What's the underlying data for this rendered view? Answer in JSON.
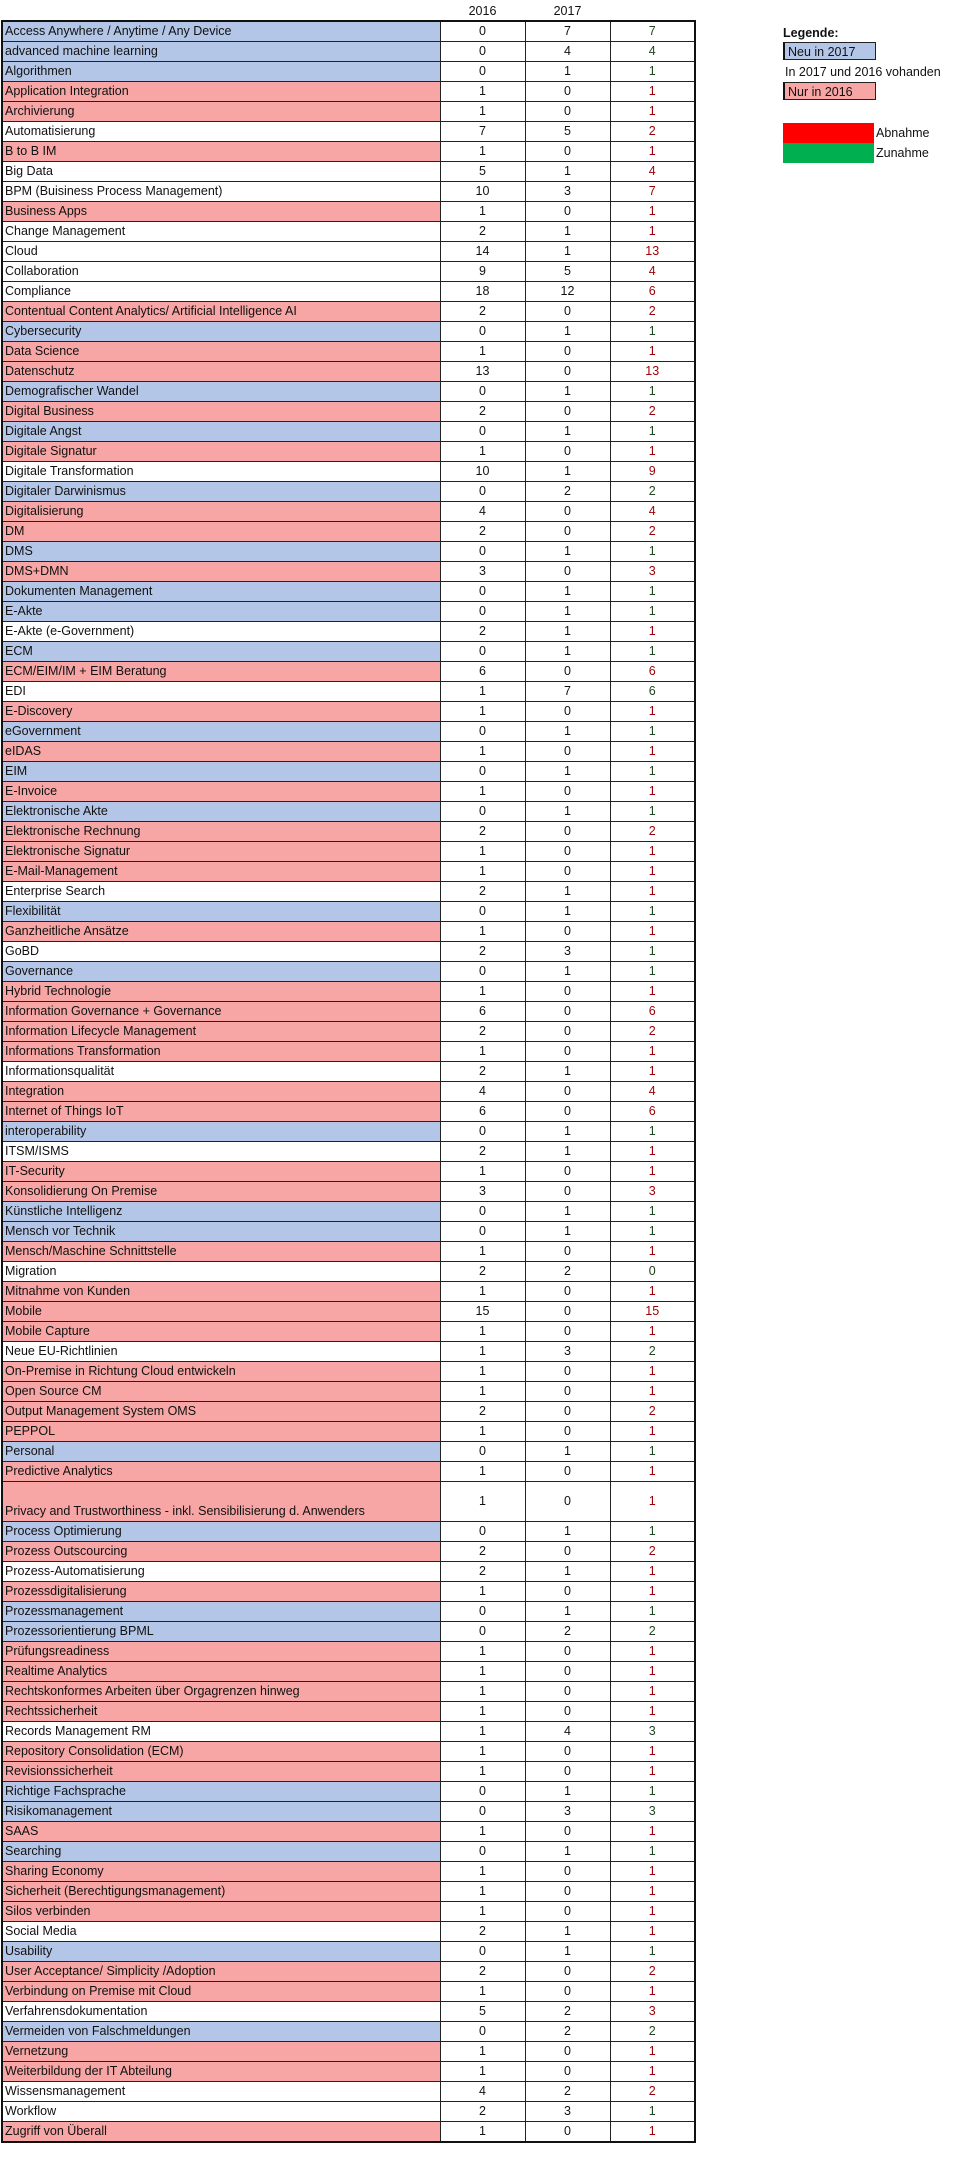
{
  "header": {
    "col_2016": "2016",
    "col_2017": "2017"
  },
  "legend": {
    "title": "Legende:",
    "neu": "Neu in 2017",
    "beide": "In 2017 und 2016 vohanden",
    "nur": "Nur in 2016",
    "abnahme": "Abnahme",
    "zunahme": "Zunahme",
    "colors": {
      "neu": "#b4c6e7",
      "nur": "#f8a5a5",
      "abnahme": "#ff0000",
      "zunahme": "#00b050",
      "unveraendert": "#92d050"
    }
  },
  "rows": [
    {
      "topic": "Access Anywhere / Anytime / Any Device",
      "y2016": "0",
      "y2017": "7",
      "diff": "7",
      "cat": "neu",
      "trend": "zu"
    },
    {
      "topic": "advanced machine learning",
      "y2016": "0",
      "y2017": "4",
      "diff": "4",
      "cat": "neu",
      "trend": "zu"
    },
    {
      "topic": "Algorithmen",
      "y2016": "0",
      "y2017": "1",
      "diff": "1",
      "cat": "neu",
      "trend": "zu"
    },
    {
      "topic": "Application Integration",
      "y2016": "1",
      "y2017": "0",
      "diff": "1",
      "cat": "nur",
      "trend": "ab"
    },
    {
      "topic": "Archivierung",
      "y2016": "1",
      "y2017": "0",
      "diff": "1",
      "cat": "nur",
      "trend": "ab"
    },
    {
      "topic": "Automatisierung",
      "y2016": "7",
      "y2017": "5",
      "diff": "2",
      "cat": "beide",
      "trend": "ab"
    },
    {
      "topic": "B to B IM",
      "y2016": "1",
      "y2017": "0",
      "diff": "1",
      "cat": "nur",
      "trend": "ab"
    },
    {
      "topic": "Big Data",
      "y2016": "5",
      "y2017": "1",
      "diff": "4",
      "cat": "beide",
      "trend": "ab"
    },
    {
      "topic": "BPM (Buisiness Process Management)",
      "y2016": "10",
      "y2017": "3",
      "diff": "7",
      "cat": "beide",
      "trend": "ab"
    },
    {
      "topic": "Business Apps",
      "y2016": "1",
      "y2017": "0",
      "diff": "1",
      "cat": "nur",
      "trend": "ab"
    },
    {
      "topic": "Change Management",
      "y2016": "2",
      "y2017": "1",
      "diff": "1",
      "cat": "beide",
      "trend": "ab"
    },
    {
      "topic": "Cloud",
      "y2016": "14",
      "y2017": "1",
      "diff": "13",
      "cat": "beide",
      "trend": "ab"
    },
    {
      "topic": "Collaboration",
      "y2016": "9",
      "y2017": "5",
      "diff": "4",
      "cat": "beide",
      "trend": "ab"
    },
    {
      "topic": "Compliance",
      "y2016": "18",
      "y2017": "12",
      "diff": "6",
      "cat": "beide",
      "trend": "ab"
    },
    {
      "topic": "Contentual Content Analytics/ Artificial Intelligence AI",
      "y2016": "2",
      "y2017": "0",
      "diff": "2",
      "cat": "nur",
      "trend": "ab"
    },
    {
      "topic": "Cybersecurity",
      "y2016": "0",
      "y2017": "1",
      "diff": "1",
      "cat": "neu",
      "trend": "zu"
    },
    {
      "topic": "Data Science",
      "y2016": "1",
      "y2017": "0",
      "diff": "1",
      "cat": "nur",
      "trend": "ab"
    },
    {
      "topic": "Datenschutz",
      "y2016": "13",
      "y2017": "0",
      "diff": "13",
      "cat": "nur",
      "trend": "ab"
    },
    {
      "topic": "Demografischer Wandel",
      "y2016": "0",
      "y2017": "1",
      "diff": "1",
      "cat": "neu",
      "trend": "zu"
    },
    {
      "topic": "Digital Business",
      "y2016": "2",
      "y2017": "0",
      "diff": "2",
      "cat": "nur",
      "trend": "ab"
    },
    {
      "topic": "Digitale Angst",
      "y2016": "0",
      "y2017": "1",
      "diff": "1",
      "cat": "neu",
      "trend": "zu"
    },
    {
      "topic": "Digitale Signatur",
      "y2016": "1",
      "y2017": "0",
      "diff": "1",
      "cat": "nur",
      "trend": "ab"
    },
    {
      "topic": "Digitale Transformation",
      "y2016": "10",
      "y2017": "1",
      "diff": "9",
      "cat": "beide",
      "trend": "ab"
    },
    {
      "topic": "Digitaler Darwinismus",
      "y2016": "0",
      "y2017": "2",
      "diff": "2",
      "cat": "neu",
      "trend": "zu"
    },
    {
      "topic": "Digitalisierung",
      "y2016": "4",
      "y2017": "0",
      "diff": "4",
      "cat": "nur",
      "trend": "ab"
    },
    {
      "topic": "DM",
      "y2016": "2",
      "y2017": "0",
      "diff": "2",
      "cat": "nur",
      "trend": "ab"
    },
    {
      "topic": "DMS",
      "y2016": "0",
      "y2017": "1",
      "diff": "1",
      "cat": "neu",
      "trend": "zu"
    },
    {
      "topic": "DMS+DMN",
      "y2016": "3",
      "y2017": "0",
      "diff": "3",
      "cat": "nur",
      "trend": "ab"
    },
    {
      "topic": "Dokumenten Management",
      "y2016": "0",
      "y2017": "1",
      "diff": "1",
      "cat": "neu",
      "trend": "zu"
    },
    {
      "topic": "E-Akte",
      "y2016": "0",
      "y2017": "1",
      "diff": "1",
      "cat": "neu",
      "trend": "zu"
    },
    {
      "topic": "E-Akte (e-Government)",
      "y2016": "2",
      "y2017": "1",
      "diff": "1",
      "cat": "beide",
      "trend": "ab"
    },
    {
      "topic": "ECM",
      "y2016": "0",
      "y2017": "1",
      "diff": "1",
      "cat": "neu",
      "trend": "zu"
    },
    {
      "topic": "ECM/EIM/IM + EIM Beratung",
      "y2016": "6",
      "y2017": "0",
      "diff": "6",
      "cat": "nur",
      "trend": "ab"
    },
    {
      "topic": "EDI",
      "y2016": "1",
      "y2017": "7",
      "diff": "6",
      "cat": "beide",
      "trend": "zu"
    },
    {
      "topic": "E-Discovery",
      "y2016": "1",
      "y2017": "0",
      "diff": "1",
      "cat": "nur",
      "trend": "ab"
    },
    {
      "topic": "eGovernment",
      "y2016": "0",
      "y2017": "1",
      "diff": "1",
      "cat": "neu",
      "trend": "zu"
    },
    {
      "topic": "eIDAS",
      "y2016": "1",
      "y2017": "0",
      "diff": "1",
      "cat": "nur",
      "trend": "ab"
    },
    {
      "topic": "EIM",
      "y2016": "0",
      "y2017": "1",
      "diff": "1",
      "cat": "neu",
      "trend": "zu"
    },
    {
      "topic": "E-Invoice",
      "y2016": "1",
      "y2017": "0",
      "diff": "1",
      "cat": "nur",
      "trend": "ab"
    },
    {
      "topic": "Elektronische Akte",
      "y2016": "0",
      "y2017": "1",
      "diff": "1",
      "cat": "neu",
      "trend": "zu"
    },
    {
      "topic": "Elektronische Rechnung",
      "y2016": "2",
      "y2017": "0",
      "diff": "2",
      "cat": "nur",
      "trend": "ab"
    },
    {
      "topic": "Elektronische Signatur",
      "y2016": "1",
      "y2017": "0",
      "diff": "1",
      "cat": "nur",
      "trend": "ab"
    },
    {
      "topic": "E-Mail-Management",
      "y2016": "1",
      "y2017": "0",
      "diff": "1",
      "cat": "nur",
      "trend": "ab"
    },
    {
      "topic": "Enterprise Search",
      "y2016": "2",
      "y2017": "1",
      "diff": "1",
      "cat": "beide",
      "trend": "ab"
    },
    {
      "topic": "Flexibilität",
      "y2016": "0",
      "y2017": "1",
      "diff": "1",
      "cat": "neu",
      "trend": "zu"
    },
    {
      "topic": "Ganzheitliche Ansätze",
      "y2016": "1",
      "y2017": "0",
      "diff": "1",
      "cat": "nur",
      "trend": "ab"
    },
    {
      "topic": "GoBD",
      "y2016": "2",
      "y2017": "3",
      "diff": "1",
      "cat": "beide",
      "trend": "zu"
    },
    {
      "topic": "Governance",
      "y2016": "0",
      "y2017": "1",
      "diff": "1",
      "cat": "neu",
      "trend": "zu"
    },
    {
      "topic": "Hybrid Technologie",
      "y2016": "1",
      "y2017": "0",
      "diff": "1",
      "cat": "nur",
      "trend": "ab"
    },
    {
      "topic": "Information Governance + Governance",
      "y2016": "6",
      "y2017": "0",
      "diff": "6",
      "cat": "nur",
      "trend": "ab"
    },
    {
      "topic": "Information Lifecycle Management",
      "y2016": "2",
      "y2017": "0",
      "diff": "2",
      "cat": "nur",
      "trend": "ab"
    },
    {
      "topic": "Informations Transformation",
      "y2016": "1",
      "y2017": "0",
      "diff": "1",
      "cat": "nur",
      "trend": "ab"
    },
    {
      "topic": "Informationsqualität",
      "y2016": "2",
      "y2017": "1",
      "diff": "1",
      "cat": "beide",
      "trend": "ab"
    },
    {
      "topic": "Integration",
      "y2016": "4",
      "y2017": "0",
      "diff": "4",
      "cat": "nur",
      "trend": "ab"
    },
    {
      "topic": "Internet of Things IoT",
      "y2016": "6",
      "y2017": "0",
      "diff": "6",
      "cat": "nur",
      "trend": "ab"
    },
    {
      "topic": "interoperability",
      "y2016": "0",
      "y2017": "1",
      "diff": "1",
      "cat": "neu",
      "trend": "zu"
    },
    {
      "topic": "ITSM/ISMS",
      "y2016": "2",
      "y2017": "1",
      "diff": "1",
      "cat": "beide",
      "trend": "ab"
    },
    {
      "topic": "IT-Security",
      "y2016": "1",
      "y2017": "0",
      "diff": "1",
      "cat": "nur",
      "trend": "ab"
    },
    {
      "topic": "Konsolidierung  On Premise",
      "y2016": "3",
      "y2017": "0",
      "diff": "3",
      "cat": "nur",
      "trend": "ab"
    },
    {
      "topic": "Künstliche Intelligenz",
      "y2016": "0",
      "y2017": "1",
      "diff": "1",
      "cat": "neu",
      "trend": "zu"
    },
    {
      "topic": "Mensch vor Technik",
      "y2016": "0",
      "y2017": "1",
      "diff": "1",
      "cat": "neu",
      "trend": "zu"
    },
    {
      "topic": "Mensch/Maschine Schnittstelle",
      "y2016": "1",
      "y2017": "0",
      "diff": "1",
      "cat": "nur",
      "trend": "ab"
    },
    {
      "topic": "Migration",
      "y2016": "2",
      "y2017": "2",
      "diff": "0",
      "cat": "beide",
      "trend": "gleich"
    },
    {
      "topic": "Mitnahme von Kunden",
      "y2016": "1",
      "y2017": "0",
      "diff": "1",
      "cat": "nur",
      "trend": "ab"
    },
    {
      "topic": "Mobile",
      "y2016": "15",
      "y2017": "0",
      "diff": "15",
      "cat": "nur",
      "trend": "ab"
    },
    {
      "topic": "Mobile Capture",
      "y2016": "1",
      "y2017": "0",
      "diff": "1",
      "cat": "nur",
      "trend": "ab"
    },
    {
      "topic": "Neue EU-Richtlinien",
      "y2016": "1",
      "y2017": "3",
      "diff": "2",
      "cat": "beide",
      "trend": "zu"
    },
    {
      "topic": "On-Premise in Richtung Cloud entwickeln",
      "y2016": "1",
      "y2017": "0",
      "diff": "1",
      "cat": "nur",
      "trend": "ab"
    },
    {
      "topic": "Open Source CM",
      "y2016": "1",
      "y2017": "0",
      "diff": "1",
      "cat": "nur",
      "trend": "ab"
    },
    {
      "topic": "Output Management System OMS",
      "y2016": "2",
      "y2017": "0",
      "diff": "2",
      "cat": "nur",
      "trend": "ab"
    },
    {
      "topic": "PEPPOL",
      "y2016": "1",
      "y2017": "0",
      "diff": "1",
      "cat": "nur",
      "trend": "ab"
    },
    {
      "topic": "Personal",
      "y2016": "0",
      "y2017": "1",
      "diff": "1",
      "cat": "neu",
      "trend": "zu"
    },
    {
      "topic": "Predictive Analytics",
      "y2016": "1",
      "y2017": "0",
      "diff": "1",
      "cat": "nur",
      "trend": "ab"
    },
    {
      "topic": "Privacy and Trustworthiness - inkl. Sensibilisierung d. Anwenders",
      "y2016": "1",
      "y2017": "0",
      "diff": "1",
      "cat": "nur",
      "trend": "ab",
      "tall": true
    },
    {
      "topic": "Process Optimierung",
      "y2016": "0",
      "y2017": "1",
      "diff": "1",
      "cat": "neu",
      "trend": "zu"
    },
    {
      "topic": "Prozess Outscourcing",
      "y2016": "2",
      "y2017": "0",
      "diff": "2",
      "cat": "nur",
      "trend": "ab"
    },
    {
      "topic": "Prozess-Automatisierung",
      "y2016": "2",
      "y2017": "1",
      "diff": "1",
      "cat": "beide",
      "trend": "ab"
    },
    {
      "topic": "Prozessdigitalisierung",
      "y2016": "1",
      "y2017": "0",
      "diff": "1",
      "cat": "nur",
      "trend": "ab"
    },
    {
      "topic": "Prozessmanagement",
      "y2016": "0",
      "y2017": "1",
      "diff": "1",
      "cat": "neu",
      "trend": "zu"
    },
    {
      "topic": "Prozessorientierung BPML",
      "y2016": "0",
      "y2017": "2",
      "diff": "2",
      "cat": "neu",
      "trend": "zu"
    },
    {
      "topic": "Prüfungsreadiness",
      "y2016": "1",
      "y2017": "0",
      "diff": "1",
      "cat": "nur",
      "trend": "ab"
    },
    {
      "topic": "Realtime Analytics",
      "y2016": "1",
      "y2017": "0",
      "diff": "1",
      "cat": "nur",
      "trend": "ab"
    },
    {
      "topic": "Rechtskonformes Arbeiten über Orgagrenzen hinweg",
      "y2016": "1",
      "y2017": "0",
      "diff": "1",
      "cat": "nur",
      "trend": "ab"
    },
    {
      "topic": "Rechtssicherheit",
      "y2016": "1",
      "y2017": "0",
      "diff": "1",
      "cat": "nur",
      "trend": "ab"
    },
    {
      "topic": "Records Management RM",
      "y2016": "1",
      "y2017": "4",
      "diff": "3",
      "cat": "beide",
      "trend": "zu"
    },
    {
      "topic": "Repository Consolidation (ECM)",
      "y2016": "1",
      "y2017": "0",
      "diff": "1",
      "cat": "nur",
      "trend": "ab"
    },
    {
      "topic": "Revisionssicherheit",
      "y2016": "1",
      "y2017": "0",
      "diff": "1",
      "cat": "nur",
      "trend": "ab"
    },
    {
      "topic": "Richtige Fachsprache",
      "y2016": "0",
      "y2017": "1",
      "diff": "1",
      "cat": "neu",
      "trend": "zu"
    },
    {
      "topic": "Risikomanagement",
      "y2016": "0",
      "y2017": "3",
      "diff": "3",
      "cat": "neu",
      "trend": "zu"
    },
    {
      "topic": "SAAS",
      "y2016": "1",
      "y2017": "0",
      "diff": "1",
      "cat": "nur",
      "trend": "ab"
    },
    {
      "topic": "Searching",
      "y2016": "0",
      "y2017": "1",
      "diff": "1",
      "cat": "neu",
      "trend": "zu"
    },
    {
      "topic": "Sharing Economy",
      "y2016": "1",
      "y2017": "0",
      "diff": "1",
      "cat": "nur",
      "trend": "ab"
    },
    {
      "topic": "Sicherheit (Berechtigungsmanagement)",
      "y2016": "1",
      "y2017": "0",
      "diff": "1",
      "cat": "nur",
      "trend": "ab"
    },
    {
      "topic": "Silos verbinden",
      "y2016": "1",
      "y2017": "0",
      "diff": "1",
      "cat": "nur",
      "trend": "ab"
    },
    {
      "topic": "Social Media",
      "y2016": "2",
      "y2017": "1",
      "diff": "1",
      "cat": "beide",
      "trend": "ab"
    },
    {
      "topic": "Usability",
      "y2016": "0",
      "y2017": "1",
      "diff": "1",
      "cat": "neu",
      "trend": "zu"
    },
    {
      "topic": "User Acceptance/ Simplicity /Adoption",
      "y2016": "2",
      "y2017": "0",
      "diff": "2",
      "cat": "nur",
      "trend": "ab"
    },
    {
      "topic": "Verbindung on Premise mit Cloud",
      "y2016": "1",
      "y2017": "0",
      "diff": "1",
      "cat": "nur",
      "trend": "ab"
    },
    {
      "topic": "Verfahrensdokumentation",
      "y2016": "5",
      "y2017": "2",
      "diff": "3",
      "cat": "beide",
      "trend": "ab"
    },
    {
      "topic": "Vermeiden von Falschmeldungen",
      "y2016": "0",
      "y2017": "2",
      "diff": "2",
      "cat": "neu",
      "trend": "zu"
    },
    {
      "topic": "Vernetzung",
      "y2016": "1",
      "y2017": "0",
      "diff": "1",
      "cat": "nur",
      "trend": "ab"
    },
    {
      "topic": "Weiterbildung der IT Abteilung",
      "y2016": "1",
      "y2017": "0",
      "diff": "1",
      "cat": "nur",
      "trend": "ab"
    },
    {
      "topic": "Wissensmanagement",
      "y2016": "4",
      "y2017": "2",
      "diff": "2",
      "cat": "beide",
      "trend": "ab"
    },
    {
      "topic": "Workflow",
      "y2016": "2",
      "y2017": "3",
      "diff": "1",
      "cat": "beide",
      "trend": "zu"
    },
    {
      "topic": "Zugriff von Überall",
      "y2016": "1",
      "y2017": "0",
      "diff": "1",
      "cat": "nur",
      "trend": "ab"
    }
  ]
}
